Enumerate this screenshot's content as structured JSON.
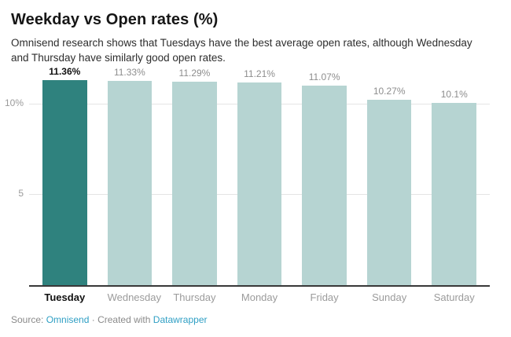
{
  "header": {
    "title": "Weekday vs Open rates (%)",
    "description": "Omnisend research shows that Tuesdays have the best average open rates, although Wednesday and Thursday have similarly good open rates."
  },
  "chart_data": {
    "type": "bar",
    "categories": [
      "Tuesday",
      "Wednesday",
      "Thursday",
      "Monday",
      "Friday",
      "Sunday",
      "Saturday"
    ],
    "values": [
      11.36,
      11.33,
      11.29,
      11.21,
      11.07,
      10.27,
      10.1
    ],
    "value_labels": [
      "11.36%",
      "11.33%",
      "11.29%",
      "11.21%",
      "11.07%",
      "10.27%",
      "10.1%"
    ],
    "highlighted_category": "Tuesday",
    "title": "Weekday vs Open rates (%)",
    "xlabel": "",
    "ylabel": "",
    "ylim": [
      0,
      11.4
    ],
    "yticks": [
      {
        "value": 5,
        "label": "5"
      },
      {
        "value": 10,
        "label": "10%"
      }
    ],
    "grid": "horizontal",
    "legend": "none",
    "colors": {
      "highlight": "#2f827e",
      "default": "#b6d4d2",
      "baseline": "#383838",
      "gridline": "#e4e4e4"
    }
  },
  "footer": {
    "source_prefix": "Source: ",
    "source_link": "Omnisend",
    "separator": " · ",
    "created_with_prefix": "Created with ",
    "tool_link": "Datawrapper",
    "link_color": "#2f9fc4"
  }
}
